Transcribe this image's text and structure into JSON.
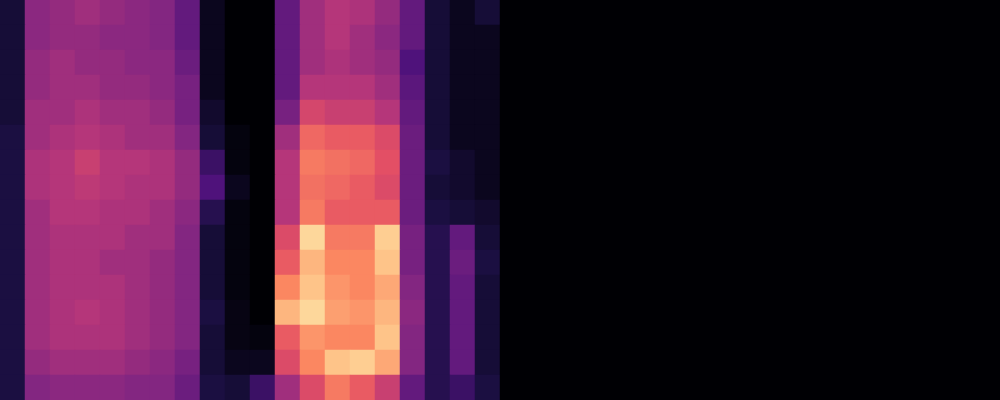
{
  "chart_data": {
    "type": "heatmap",
    "tick_labels": false,
    "zlim": [
      0,
      1
    ],
    "cells": [
      [
        0.1,
        0.4,
        0.42,
        0.45,
        0.42,
        0.4,
        0.38,
        0.3,
        0.05,
        0,
        0,
        0.3,
        0.45,
        0.5,
        0.48,
        0.42,
        0.3,
        0.1,
        0.05,
        0.1,
        0,
        0,
        0,
        0,
        0,
        0,
        0,
        0,
        0,
        0,
        0,
        0,
        0,
        0,
        0,
        0,
        0,
        0,
        0,
        0
      ],
      [
        0.1,
        0.4,
        0.42,
        0.42,
        0.4,
        0.4,
        0.38,
        0.3,
        0.05,
        0,
        0,
        0.3,
        0.45,
        0.5,
        0.45,
        0.4,
        0.3,
        0.1,
        0.05,
        0.05,
        0,
        0,
        0,
        0,
        0,
        0,
        0,
        0,
        0,
        0,
        0,
        0,
        0,
        0,
        0,
        0,
        0,
        0,
        0,
        0
      ],
      [
        0.1,
        0.42,
        0.45,
        0.42,
        0.42,
        0.4,
        0.4,
        0.32,
        0.05,
        0,
        0,
        0.3,
        0.45,
        0.48,
        0.45,
        0.42,
        0.25,
        0.1,
        0.05,
        0.05,
        0,
        0,
        0,
        0,
        0,
        0,
        0,
        0,
        0,
        0,
        0,
        0,
        0,
        0,
        0,
        0,
        0,
        0,
        0,
        0
      ],
      [
        0.1,
        0.42,
        0.45,
        0.45,
        0.42,
        0.42,
        0.4,
        0.35,
        0.05,
        0,
        0,
        0.3,
        0.5,
        0.5,
        0.5,
        0.45,
        0.28,
        0.1,
        0.05,
        0.05,
        0,
        0,
        0,
        0,
        0,
        0,
        0,
        0,
        0,
        0,
        0,
        0,
        0,
        0,
        0,
        0,
        0,
        0,
        0,
        0
      ],
      [
        0.1,
        0.45,
        0.45,
        0.48,
        0.45,
        0.45,
        0.42,
        0.35,
        0.08,
        0,
        0,
        0.35,
        0.58,
        0.55,
        0.55,
        0.5,
        0.3,
        0.1,
        0.05,
        0.05,
        0,
        0,
        0,
        0,
        0,
        0,
        0,
        0,
        0,
        0,
        0,
        0,
        0,
        0,
        0,
        0,
        0,
        0,
        0,
        0
      ],
      [
        0.12,
        0.45,
        0.48,
        0.5,
        0.48,
        0.45,
        0.45,
        0.38,
        0.1,
        0.02,
        0,
        0.45,
        0.68,
        0.65,
        0.65,
        0.6,
        0.32,
        0.1,
        0.05,
        0.05,
        0,
        0,
        0,
        0,
        0,
        0,
        0,
        0,
        0,
        0,
        0,
        0,
        0,
        0,
        0,
        0,
        0,
        0,
        0,
        0
      ],
      [
        0.12,
        0.48,
        0.5,
        0.55,
        0.5,
        0.5,
        0.48,
        0.42,
        0.2,
        0.02,
        0,
        0.5,
        0.72,
        0.7,
        0.68,
        0.62,
        0.32,
        0.12,
        0.08,
        0.05,
        0,
        0,
        0,
        0,
        0,
        0,
        0,
        0,
        0,
        0,
        0,
        0,
        0,
        0,
        0,
        0,
        0,
        0,
        0,
        0
      ],
      [
        0.12,
        0.48,
        0.5,
        0.52,
        0.5,
        0.48,
        0.48,
        0.42,
        0.25,
        0.05,
        0,
        0.5,
        0.7,
        0.68,
        0.65,
        0.6,
        0.32,
        0.1,
        0.08,
        0.05,
        0,
        0,
        0,
        0,
        0,
        0,
        0,
        0,
        0,
        0,
        0,
        0,
        0,
        0,
        0,
        0,
        0,
        0,
        0,
        0
      ],
      [
        0.12,
        0.45,
        0.5,
        0.5,
        0.48,
        0.48,
        0.45,
        0.4,
        0.15,
        0.02,
        0,
        0.5,
        0.72,
        0.65,
        0.65,
        0.65,
        0.32,
        0.12,
        0.1,
        0.08,
        0,
        0,
        0,
        0,
        0,
        0,
        0,
        0,
        0,
        0,
        0,
        0,
        0,
        0,
        0,
        0,
        0,
        0,
        0,
        0
      ],
      [
        0.12,
        0.45,
        0.48,
        0.48,
        0.48,
        0.45,
        0.45,
        0.38,
        0.1,
        0.02,
        0,
        0.6,
        0.92,
        0.72,
        0.72,
        0.9,
        0.35,
        0.15,
        0.3,
        0.1,
        0,
        0,
        0,
        0,
        0,
        0,
        0,
        0,
        0,
        0,
        0,
        0,
        0,
        0,
        0,
        0,
        0,
        0,
        0,
        0
      ],
      [
        0.12,
        0.45,
        0.48,
        0.48,
        0.45,
        0.45,
        0.42,
        0.38,
        0.1,
        0.02,
        0,
        0.65,
        0.85,
        0.75,
        0.75,
        0.88,
        0.35,
        0.15,
        0.32,
        0.12,
        0,
        0,
        0,
        0,
        0,
        0,
        0,
        0,
        0,
        0,
        0,
        0,
        0,
        0,
        0,
        0,
        0,
        0,
        0,
        0
      ],
      [
        0.12,
        0.45,
        0.48,
        0.48,
        0.48,
        0.45,
        0.42,
        0.38,
        0.1,
        0.02,
        0,
        0.75,
        0.88,
        0.78,
        0.75,
        0.82,
        0.38,
        0.15,
        0.3,
        0.1,
        0,
        0,
        0,
        0,
        0,
        0,
        0,
        0,
        0,
        0,
        0,
        0,
        0,
        0,
        0,
        0,
        0,
        0,
        0,
        0
      ],
      [
        0.12,
        0.45,
        0.48,
        0.5,
        0.48,
        0.45,
        0.42,
        0.38,
        0.12,
        0.03,
        0,
        0.85,
        0.92,
        0.8,
        0.78,
        0.85,
        0.4,
        0.15,
        0.3,
        0.1,
        0,
        0,
        0,
        0,
        0,
        0,
        0,
        0,
        0,
        0,
        0,
        0,
        0,
        0,
        0,
        0,
        0,
        0,
        0,
        0
      ],
      [
        0.12,
        0.45,
        0.48,
        0.48,
        0.48,
        0.45,
        0.42,
        0.38,
        0.1,
        0.03,
        0.02,
        0.65,
        0.78,
        0.75,
        0.75,
        0.88,
        0.38,
        0.15,
        0.3,
        0.1,
        0,
        0,
        0,
        0,
        0,
        0,
        0,
        0,
        0,
        0,
        0,
        0,
        0,
        0,
        0,
        0,
        0,
        0,
        0,
        0
      ],
      [
        0.12,
        0.42,
        0.45,
        0.45,
        0.45,
        0.42,
        0.4,
        0.35,
        0.1,
        0.05,
        0.05,
        0.6,
        0.75,
        0.88,
        0.9,
        0.82,
        0.38,
        0.15,
        0.3,
        0.1,
        0,
        0,
        0,
        0,
        0,
        0,
        0,
        0,
        0,
        0,
        0,
        0,
        0,
        0,
        0,
        0,
        0,
        0,
        0,
        0
      ],
      [
        0.12,
        0.38,
        0.4,
        0.4,
        0.4,
        0.38,
        0.38,
        0.32,
        0.12,
        0.1,
        0.2,
        0.45,
        0.6,
        0.72,
        0.65,
        0.55,
        0.3,
        0.15,
        0.2,
        0.12,
        0,
        0,
        0,
        0,
        0,
        0,
        0,
        0,
        0,
        0,
        0,
        0,
        0,
        0,
        0,
        0,
        0,
        0,
        0,
        0
      ]
    ]
  }
}
